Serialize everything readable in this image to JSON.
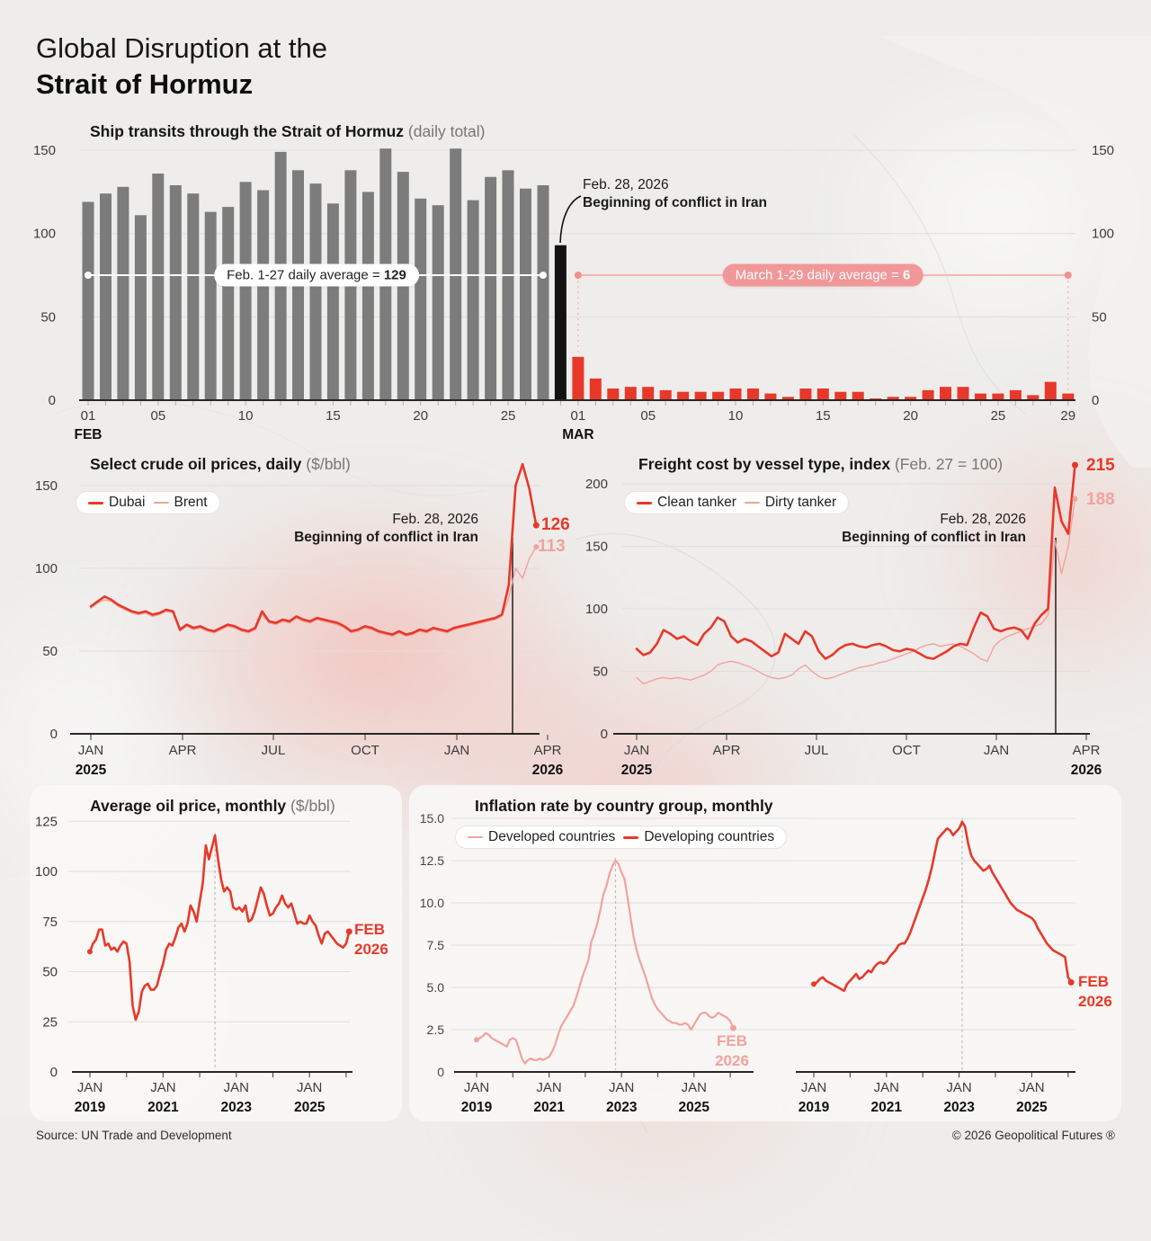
{
  "page": {
    "title_line1": "Global Disruption at the",
    "title_line2": "Strait of Hormuz",
    "source": "Source: UN Trade and Development",
    "copyright": "© 2026 Geopolitical Futures ®"
  },
  "colors": {
    "red": "#e8382a",
    "pink": "#f2a29d",
    "pink_soft": "#f6b6b2",
    "bar_gray": "#7c7c7c",
    "bar_black": "#121212",
    "pill_pink_bg": "#f29799",
    "grid": "#dfdedc",
    "axis": "#272727"
  },
  "chart_data": [
    {
      "type": "bar",
      "title": "Ship transits through the Strait of Hormuz",
      "unit": "(daily total)",
      "yticks": [
        0,
        50,
        100,
        150
      ],
      "x_axis": {
        "feb_label": "FEB",
        "mar_label": "MAR",
        "feb_tick_days": [
          1,
          5,
          10,
          15,
          20,
          25
        ],
        "mar_tick_days": [
          1,
          5,
          10,
          15,
          20,
          25,
          29
        ]
      },
      "feb_values": [
        119,
        124,
        128,
        111,
        136,
        129,
        124,
        113,
        116,
        131,
        126,
        149,
        138,
        130,
        118,
        138,
        125,
        151,
        137,
        121,
        117,
        151,
        120,
        134,
        138,
        127,
        129
      ],
      "feb28_value": 93,
      "mar_values": [
        26,
        13,
        7,
        8,
        8,
        6,
        5,
        5,
        5,
        7,
        7,
        4,
        2,
        7,
        7,
        5,
        5,
        1,
        2,
        2,
        6,
        8,
        8,
        4,
        4,
        6,
        3,
        11,
        4
      ],
      "avg_feb": {
        "text": "Feb. 1-27 daily average = ",
        "value": "129"
      },
      "avg_mar": {
        "text": "March 1-29 daily average = ",
        "value": "6"
      },
      "event": {
        "date": "Feb. 28, 2026",
        "text": "Beginning of conflict in Iran"
      }
    },
    {
      "type": "line",
      "title": "Select crude oil prices, daily",
      "unit": "($/bbl)",
      "yticks": [
        0,
        50,
        100,
        150
      ],
      "xticks": [
        {
          "label": "JAN",
          "year": "2025"
        },
        {
          "label": "APR"
        },
        {
          "label": "JUL"
        },
        {
          "label": "OCT"
        },
        {
          "label": "JAN"
        },
        {
          "label": "APR",
          "year": "2026"
        }
      ],
      "event": {
        "date": "Feb. 28, 2026",
        "text": "Beginning of conflict in Iran"
      },
      "series": [
        {
          "name": "Dubai",
          "end_label": "126",
          "values": [
            77,
            80,
            83,
            81,
            78,
            76,
            74,
            73,
            74,
            72,
            73,
            75,
            74,
            63,
            66,
            64,
            65,
            63,
            62,
            64,
            66,
            65,
            63,
            62,
            64,
            74,
            68,
            67,
            69,
            68,
            71,
            69,
            68,
            70,
            69,
            68,
            67,
            65,
            62,
            63,
            65,
            64,
            62,
            61,
            60,
            62,
            60,
            61,
            63,
            62,
            64,
            63,
            62,
            64,
            65,
            66,
            67,
            68,
            69,
            70,
            72,
            90,
            150,
            163,
            148,
            126
          ]
        },
        {
          "name": "Brent",
          "end_label": "113",
          "values": [
            76,
            79,
            81,
            80,
            77,
            75,
            73,
            72,
            73,
            71,
            72,
            74,
            73,
            62,
            65,
            63,
            64,
            62,
            61,
            63,
            65,
            64,
            62,
            61,
            63,
            72,
            67,
            66,
            68,
            67,
            70,
            68,
            67,
            69,
            68,
            67,
            66,
            64,
            61,
            62,
            64,
            63,
            61,
            60,
            59,
            61,
            59,
            60,
            62,
            61,
            63,
            62,
            61,
            63,
            64,
            65,
            66,
            67,
            68,
            69,
            71,
            82,
            100,
            94,
            106,
            113
          ]
        }
      ]
    },
    {
      "type": "line",
      "title": "Freight cost by vessel type, index",
      "unit": "(Feb. 27 = 100)",
      "yticks": [
        0,
        50,
        100,
        150,
        200
      ],
      "xticks": [
        {
          "label": "JAN",
          "year": "2025"
        },
        {
          "label": "APR"
        },
        {
          "label": "JUL"
        },
        {
          "label": "OCT"
        },
        {
          "label": "JAN"
        },
        {
          "label": "APR",
          "year": "2026"
        }
      ],
      "event": {
        "date": "Feb. 28, 2026",
        "text": "Beginning of conflict in Iran"
      },
      "series": [
        {
          "name": "Clean tanker",
          "end_label": "215",
          "values": [
            68,
            63,
            65,
            72,
            83,
            80,
            76,
            78,
            74,
            71,
            80,
            85,
            93,
            90,
            78,
            73,
            76,
            74,
            70,
            66,
            62,
            65,
            80,
            76,
            72,
            82,
            78,
            66,
            60,
            63,
            68,
            71,
            72,
            70,
            69,
            71,
            72,
            70,
            67,
            66,
            68,
            67,
            64,
            61,
            60,
            63,
            66,
            70,
            72,
            71,
            85,
            97,
            94,
            84,
            82,
            84,
            85,
            83,
            76,
            88,
            95,
            100,
            197,
            170,
            160,
            215
          ]
        },
        {
          "name": "Dirty tanker",
          "end_label": "188",
          "values": [
            45,
            40,
            42,
            44,
            45,
            44,
            45,
            44,
            43,
            45,
            47,
            50,
            55,
            57,
            58,
            57,
            55,
            53,
            50,
            47,
            45,
            44,
            45,
            47,
            52,
            55,
            50,
            46,
            44,
            45,
            47,
            49,
            51,
            53,
            54,
            55,
            57,
            58,
            60,
            62,
            64,
            66,
            69,
            71,
            72,
            70,
            71,
            72,
            70,
            67,
            64,
            60,
            58,
            70,
            75,
            78,
            80,
            82,
            84,
            86,
            88,
            95,
            155,
            128,
            150,
            188
          ]
        }
      ]
    },
    {
      "type": "line",
      "title": "Average oil price, monthly",
      "unit": "($/bbl)",
      "yticks": [
        0,
        25,
        50,
        75,
        100,
        125
      ],
      "xticks": [
        {
          "label": "JAN",
          "year": "2019"
        },
        {
          "label": "JAN",
          "year": "2021"
        },
        {
          "label": "JAN",
          "year": "2023"
        },
        {
          "label": "JAN",
          "year": "2025"
        }
      ],
      "end_label": {
        "line1": "FEB",
        "line2": "2026"
      },
      "values": [
        60,
        64,
        66,
        71,
        71,
        63,
        64,
        61,
        62,
        60,
        63,
        65,
        64,
        55,
        33,
        26,
        30,
        40,
        43,
        44,
        41,
        41,
        43,
        49,
        54,
        61,
        64,
        63,
        67,
        72,
        74,
        70,
        74,
        83,
        80,
        75,
        85,
        94,
        113,
        106,
        112,
        118,
        106,
        96,
        90,
        92,
        90,
        82,
        81,
        82,
        80,
        83,
        75,
        76,
        80,
        86,
        92,
        89,
        83,
        78,
        79,
        82,
        84,
        88,
        84,
        82,
        84,
        79,
        74,
        75,
        74,
        74,
        78,
        75,
        73,
        68,
        64,
        69,
        70,
        68,
        66,
        64,
        63,
        62,
        64,
        70
      ]
    },
    {
      "type": "line",
      "title": "Inflation rate by country group, monthly",
      "yticks": [
        "0",
        "2.5",
        "5.0",
        "7.5",
        "10.0",
        "12.5",
        "15.0"
      ],
      "xticks": [
        {
          "label": "JAN",
          "year": "2019"
        },
        {
          "label": "JAN",
          "year": "2021"
        },
        {
          "label": "JAN",
          "year": "2023"
        },
        {
          "label": "JAN",
          "year": "2025"
        }
      ],
      "series": [
        {
          "name": "Developed countries",
          "end_label_line1": "FEB",
          "end_label_line2": "2026",
          "values": [
            1.9,
            2.0,
            2.1,
            2.3,
            2.2,
            2.0,
            1.9,
            1.8,
            1.7,
            1.6,
            1.5,
            1.9,
            2.0,
            1.9,
            1.4,
            0.8,
            0.5,
            0.7,
            0.8,
            0.7,
            0.7,
            0.8,
            0.7,
            0.8,
            0.9,
            1.2,
            1.6,
            2.2,
            2.7,
            3.0,
            3.3,
            3.6,
            3.9,
            4.4,
            5.0,
            5.6,
            6.1,
            6.6,
            7.7,
            8.2,
            8.8,
            9.6,
            10.5,
            11.0,
            11.7,
            12.2,
            12.5,
            12.3,
            11.8,
            11.4,
            10.3,
            9.1,
            8.0,
            7.2,
            6.6,
            6.1,
            5.6,
            5.0,
            4.4,
            4.0,
            3.7,
            3.5,
            3.3,
            3.1,
            3.0,
            2.9,
            2.9,
            2.8,
            2.8,
            2.9,
            2.8,
            2.5,
            2.8,
            3.1,
            3.4,
            3.5,
            3.5,
            3.3,
            3.2,
            3.3,
            3.5,
            3.4,
            3.3,
            3.2,
            3.0,
            2.6
          ]
        },
        {
          "name": "Developing countries",
          "end_label_line1": "FEB",
          "end_label_line2": "2026",
          "values": [
            5.2,
            5.3,
            5.5,
            5.6,
            5.4,
            5.3,
            5.2,
            5.1,
            5.0,
            4.9,
            4.8,
            5.2,
            5.4,
            5.6,
            5.8,
            5.5,
            5.6,
            5.8,
            6.0,
            5.9,
            6.2,
            6.4,
            6.5,
            6.4,
            6.5,
            6.8,
            7.0,
            7.2,
            7.5,
            7.6,
            7.6,
            7.9,
            8.3,
            8.8,
            9.3,
            9.8,
            10.3,
            10.8,
            11.4,
            12.1,
            13.0,
            13.8,
            14.0,
            14.2,
            14.4,
            14.3,
            14.0,
            14.2,
            14.4,
            14.8,
            14.5,
            13.5,
            12.8,
            12.5,
            12.3,
            12.1,
            11.9,
            12.0,
            12.2,
            11.8,
            11.5,
            11.2,
            10.9,
            10.6,
            10.3,
            10.0,
            9.8,
            9.6,
            9.5,
            9.4,
            9.3,
            9.2,
            9.1,
            8.9,
            8.5,
            8.2,
            7.9,
            7.6,
            7.4,
            7.2,
            7.1,
            7.0,
            6.9,
            6.8,
            5.6,
            5.3
          ]
        }
      ]
    }
  ]
}
